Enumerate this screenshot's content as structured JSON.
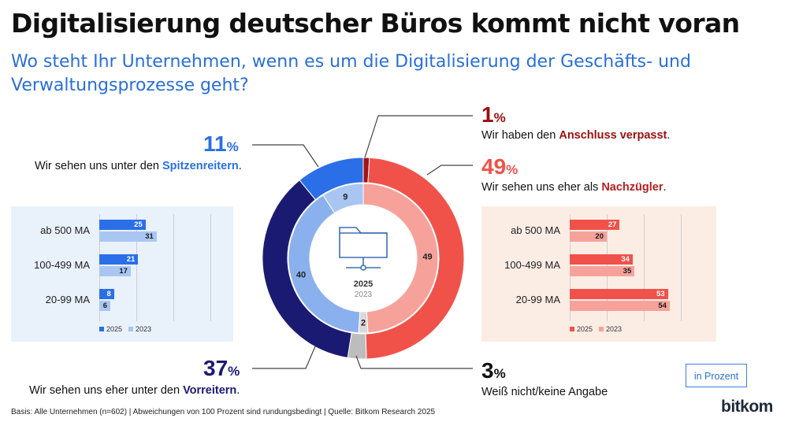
{
  "title": "Digitalisierung deutscher Büros kommt nicht voran",
  "subtitle": "Wo steht Ihr Unternehmen, wenn es um die Digitalisierung der Geschäfts- und Verwaltungsprozesse geht?",
  "callouts": {
    "anschluss": {
      "value": "1",
      "unit": "%",
      "text_pre": "Wir haben den ",
      "text_bold": "Anschluss verpasst",
      "text_post": ".",
      "color": "#9b0f0f"
    },
    "nachzuegler": {
      "value": "49",
      "unit": "%",
      "text_pre": "Wir sehen uns eher als ",
      "text_bold": "Nachzügler",
      "text_post": ".",
      "color": "#f0524a",
      "bold_color": "#b61f1f"
    },
    "spitzenreiter": {
      "value": "11",
      "unit": "%",
      "text_pre": "Wir sehen uns unter den ",
      "text_bold": "Spitzenreitern",
      "text_post": ".",
      "color": "#2a6fe8",
      "bold_color": "#2a6fe8"
    },
    "vorreiter": {
      "value": "37",
      "unit": "%",
      "text_pre": "Wir sehen uns eher unter den ",
      "text_bold": "Vorreitern",
      "text_post": ".",
      "color": "#1b1a73",
      "bold_color": "#1b1a73"
    },
    "weissnicht": {
      "value": "3",
      "unit": "%",
      "text": "Weiß nicht/keine Angabe",
      "color": "#111111"
    }
  },
  "center": {
    "year_current": "2025",
    "year_previous": "2023",
    "icon": "folder-network-icon"
  },
  "unit_label": "in Prozent",
  "footer": "Basis: Alle Unternehmen (n=602) | Abweichungen von 100 Prozent sind rundungsbedingt | Quelle: Bitkom Research 2025",
  "logo": "bitkom",
  "colors": {
    "dark_red": "#a3131a",
    "red": "#f0524a",
    "light_red": "#f6a29b",
    "blue": "#2a6fe8",
    "light_blue": "#a9c6f2",
    "navy": "#1b1a73",
    "mid_blue": "#8bb0ee",
    "grey": "#bdbdbd"
  },
  "chart_data": [
    {
      "type": "pie",
      "subtype": "double-donut",
      "unit": "%",
      "categories": [
        "Anschluss verpasst",
        "Nachzügler",
        "Weiß nicht/keine Angabe",
        "Vorreiter",
        "Spitzenreiter"
      ],
      "series": [
        {
          "name": "2025",
          "values": [
            1,
            49,
            3,
            37,
            11
          ]
        },
        {
          "name": "2023",
          "values": [
            0,
            49,
            2,
            40,
            9
          ]
        }
      ],
      "inner_labels": [
        "",
        "49",
        "2",
        "40",
        "9"
      ]
    },
    {
      "type": "bar",
      "orientation": "horizontal",
      "categories": [
        "ab 500 MA",
        "100-499 MA",
        "20-99 MA"
      ],
      "series": [
        {
          "name": "2025",
          "values": [
            25,
            21,
            8
          ]
        },
        {
          "name": "2023",
          "values": [
            31,
            17,
            6
          ]
        }
      ],
      "xlim": [
        0,
        60
      ],
      "legend": "bottom-left"
    },
    {
      "type": "bar",
      "orientation": "horizontal",
      "categories": [
        "ab 500 MA",
        "100-499 MA",
        "20-99 MA"
      ],
      "series": [
        {
          "name": "2025",
          "values": [
            27,
            34,
            53
          ]
        },
        {
          "name": "2023",
          "values": [
            20,
            35,
            54
          ]
        }
      ],
      "xlim": [
        0,
        60
      ],
      "legend": "bottom-left"
    }
  ]
}
